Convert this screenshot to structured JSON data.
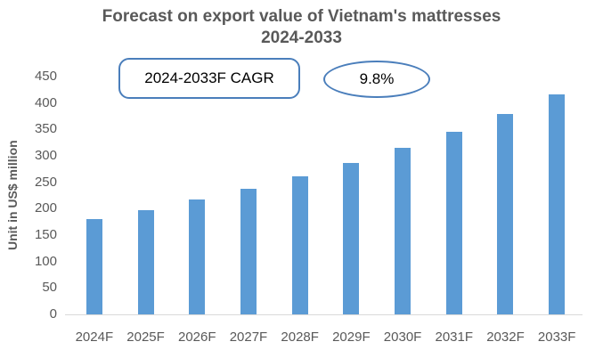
{
  "title": {
    "line1": "Forecast on export value of Vietnam's mattresses",
    "line2": "2024-2033"
  },
  "annotations": {
    "cagr_box_label": "2024-2033F CAGR",
    "cagr_value": "9.8%"
  },
  "chart_data": {
    "type": "bar",
    "title": "Forecast on export value of Vietnam's mattresses 2024-2033",
    "xlabel": "",
    "ylabel": "Unit in US$ million",
    "categories": [
      "2024F",
      "2025F",
      "2026F",
      "2027F",
      "2028F",
      "2029F",
      "2030F",
      "2031F",
      "2032F",
      "2033F"
    ],
    "values": [
      180,
      198,
      217,
      238,
      262,
      287,
      315,
      346,
      380,
      417
    ],
    "ylim": [
      0,
      450
    ],
    "yticks": [
      450,
      400,
      350,
      300,
      250,
      200,
      150,
      100,
      50,
      0
    ],
    "grid": false,
    "legend": null,
    "bar_color": "#5B9BD5",
    "annotations": [
      {
        "shape": "rounded-rect",
        "text": "2024-2033F CAGR"
      },
      {
        "shape": "ellipse",
        "text": "9.8%"
      }
    ]
  },
  "colors": {
    "background": "#FFFFFF",
    "bar": "#5B9BD5",
    "title_text": "#595959",
    "axis_text": "#595959",
    "axis_line": "#D9D9D9",
    "shape_border": "#4A7EBB",
    "shape_text": "#000000"
  }
}
